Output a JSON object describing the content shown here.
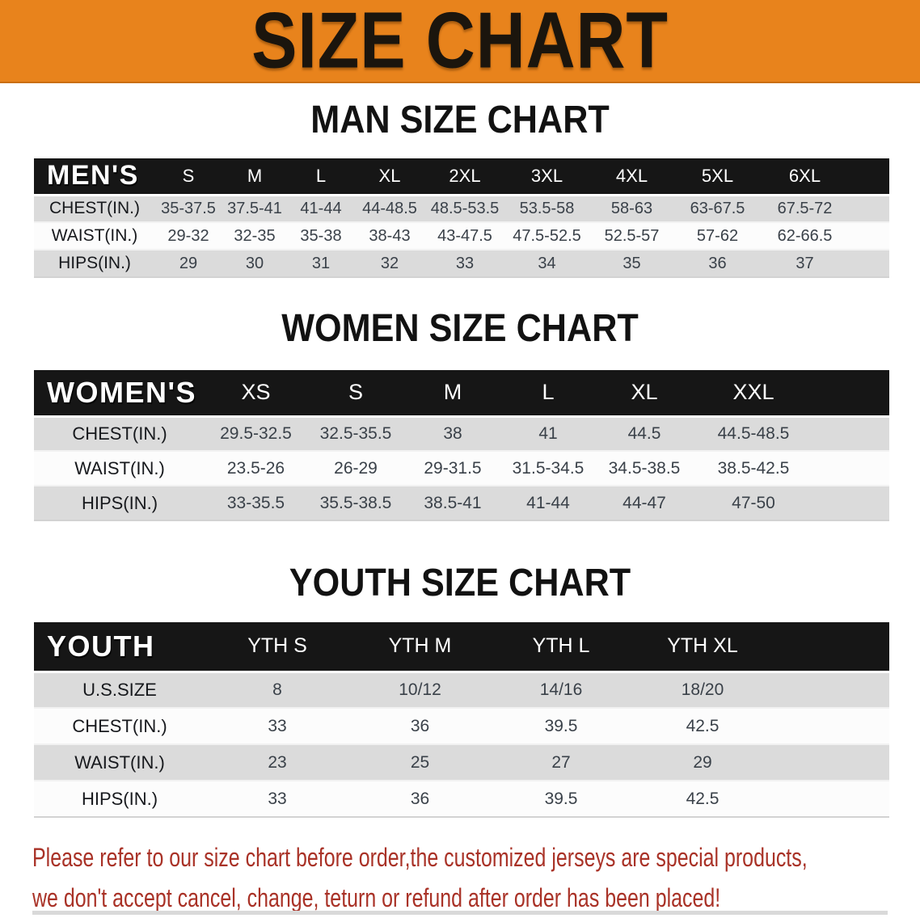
{
  "banner": {
    "title": "SIZE CHART",
    "bg": "#E8831C"
  },
  "sections": [
    {
      "heading": "MAN SIZE CHART",
      "corner": "MEN'S",
      "columns": [
        "S",
        "M",
        "L",
        "XL",
        "2XL",
        "3XL",
        "4XL",
        "5XL",
        "6XL"
      ],
      "rows": [
        {
          "label": "CHEST(IN.)",
          "values": [
            "35-37.5",
            "37.5-41",
            "41-44",
            "44-48.5",
            "48.5-53.5",
            "53.5-58",
            "58-63",
            "63-67.5",
            "67.5-72"
          ]
        },
        {
          "label": "WAIST(IN.)",
          "values": [
            "29-32",
            "32-35",
            "35-38",
            "38-43",
            "43-47.5",
            "47.5-52.5",
            "52.5-57",
            "57-62",
            "62-66.5"
          ]
        },
        {
          "label": "HIPS(IN.)",
          "values": [
            "29",
            "30",
            "31",
            "32",
            "33",
            "34",
            "35",
            "36",
            "37"
          ]
        }
      ]
    },
    {
      "heading": "WOMEN SIZE CHART",
      "corner": "WOMEN'S",
      "columns": [
        "XS",
        "S",
        "M",
        "L",
        "XL",
        "XXL"
      ],
      "rows": [
        {
          "label": "CHEST(IN.)",
          "values": [
            "29.5-32.5",
            "32.5-35.5",
            "38",
            "41",
            "44.5",
            "44.5-48.5"
          ]
        },
        {
          "label": "WAIST(IN.)",
          "values": [
            "23.5-26",
            "26-29",
            "29-31.5",
            "31.5-34.5",
            "34.5-38.5",
            "38.5-42.5"
          ]
        },
        {
          "label": "HIPS(IN.)",
          "values": [
            "33-35.5",
            "35.5-38.5",
            "38.5-41",
            "41-44",
            "44-47",
            "47-50"
          ]
        }
      ]
    },
    {
      "heading": "YOUTH SIZE CHART",
      "corner": "YOUTH",
      "columns": [
        "YTH S",
        "YTH M",
        "YTH L",
        "YTH XL"
      ],
      "rows": [
        {
          "label": "U.S.SIZE",
          "values": [
            "8",
            "10/12",
            "14/16",
            "18/20"
          ]
        },
        {
          "label": "CHEST(IN.)",
          "values": [
            "33",
            "36",
            "39.5",
            "42.5"
          ]
        },
        {
          "label": "WAIST(IN.)",
          "values": [
            "23",
            "25",
            "27",
            "29"
          ]
        },
        {
          "label": "HIPS(IN.)",
          "values": [
            "33",
            "36",
            "39.5",
            "42.5"
          ]
        }
      ]
    }
  ],
  "disclaimer": {
    "line1": "Please refer to our size chart before order,the customized jerseys are special products,",
    "line2": "we don't accept cancel, change, teturn or refund after order has been placed!",
    "color": "#A93227"
  }
}
